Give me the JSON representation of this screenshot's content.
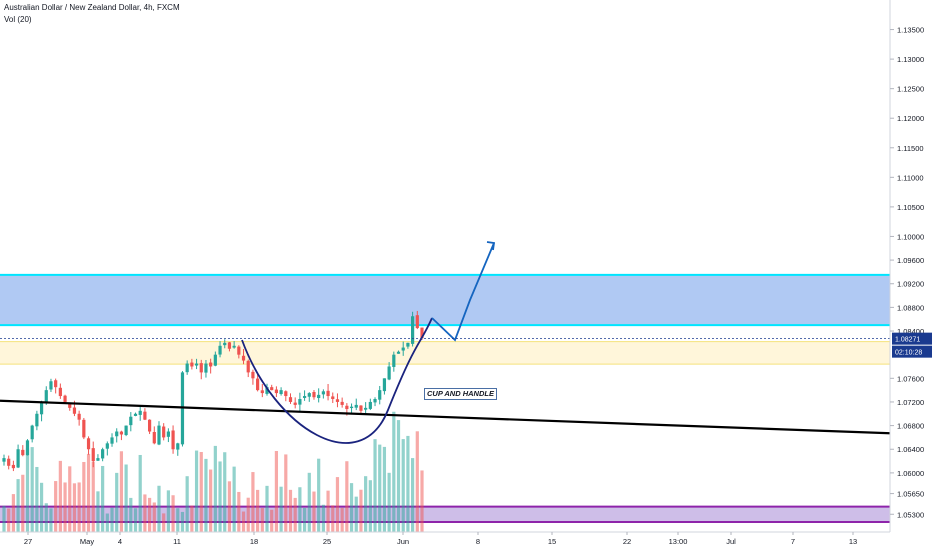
{
  "header": {
    "title": "Australian Dollar / New Zealand Dollar, 4h, FXCM",
    "volume_label": "Vol (20)"
  },
  "colors": {
    "up": "#26a69a",
    "down": "#ef5350",
    "resistance_fill": "#a7c3f2",
    "resistance_border": "#00e5ff",
    "support_fill": "#fff5d6",
    "support_border": "#f5e27a",
    "bottom_fill": "#c9b7e6",
    "bottom_border": "#8e24aa",
    "cup": "#1a237e",
    "projection": "#1565c0",
    "trendline": "#000000",
    "price_label_bg": "#1a3a8f"
  },
  "chart_data": {
    "type": "candlestick",
    "symbol": "AUDNZD",
    "timeframe": "4h",
    "source": "FXCM",
    "ylim": [
      1.05,
      1.14
    ],
    "y_ticks": [
      "1.13500",
      "1.13000",
      "1.12500",
      "1.12000",
      "1.11500",
      "1.11000",
      "1.10500",
      "1.10000",
      "1.09600",
      "1.09200",
      "1.08800",
      "1.08400",
      "1.08271",
      "1.07600",
      "1.07200",
      "1.06800",
      "1.06400",
      "1.06000",
      "1.05650",
      "1.05300"
    ],
    "x_ticks": [
      "27",
      "May",
      "4",
      "11",
      "18",
      "25",
      "Jun",
      "8",
      "15",
      "22",
      "13:00",
      "Jul",
      "7",
      "13"
    ],
    "last_price": "1.08271",
    "countdown": "02:10:28",
    "zones": [
      {
        "name": "resistance",
        "from": 1.085,
        "to": 1.0935
      },
      {
        "name": "support",
        "from": 1.0784,
        "to": 1.0822
      },
      {
        "name": "volume-area",
        "from": 1.0517,
        "to": 1.0543
      }
    ],
    "trendline": {
      "start": 1.0722,
      "end": 1.0667
    },
    "annotation": "CUP AND HANDLE",
    "price_path": [
      1.0625,
      1.0612,
      1.0608,
      1.064,
      1.063,
      1.0655,
      1.068,
      1.07,
      1.072,
      1.074,
      1.0755,
      1.0745,
      1.073,
      1.072,
      1.071,
      1.07,
      1.069,
      1.066,
      1.064,
      1.062,
      1.0625,
      1.064,
      1.065,
      1.066,
      1.067,
      1.0665,
      1.068,
      1.0695,
      1.07,
      1.0705,
      1.069,
      1.067,
      1.065,
      1.068,
      1.066,
      1.067,
      1.064,
      1.065,
      1.077,
      1.0785,
      1.078,
      1.0785,
      1.077,
      1.0785,
      1.078,
      1.08,
      1.0815,
      1.082,
      1.081,
      1.0815,
      1.08,
      1.079,
      1.077,
      1.076,
      1.074,
      1.0735,
      1.0745,
      1.074,
      1.0735,
      1.074,
      1.073,
      1.072,
      1.0715,
      1.0725,
      1.073,
      1.0735,
      1.0728,
      1.0732,
      1.0738,
      1.073,
      1.0725,
      1.072,
      1.0715,
      1.0708,
      1.0712,
      1.0715,
      1.0705,
      1.071,
      1.072,
      1.0725,
      1.074,
      1.076,
      1.078,
      1.08,
      1.0805,
      1.0812,
      1.082,
      1.0865,
      1.0845,
      1.0828
    ]
  }
}
